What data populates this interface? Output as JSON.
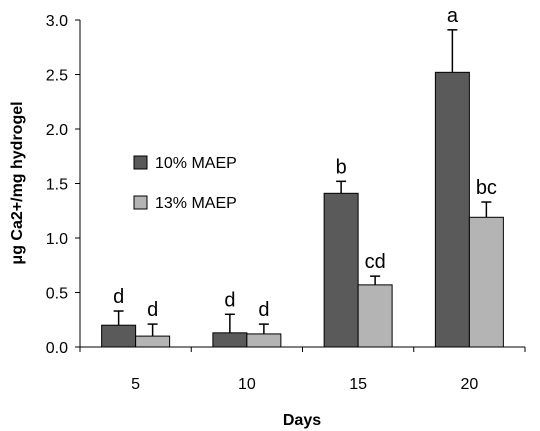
{
  "chart_data": {
    "type": "bar",
    "xlabel": "Days",
    "ylabel": "μg Ca2+/mg hydrogel",
    "categories": [
      "5",
      "10",
      "15",
      "20"
    ],
    "ylim": [
      0,
      3.0
    ],
    "yticks": [
      "0.0",
      "0.5",
      "1.0",
      "1.5",
      "2.0",
      "2.5",
      "3.0"
    ],
    "grid": false,
    "legend_position": "left-center",
    "series": [
      {
        "name": "10% MAEP",
        "color": "#5a5a5a",
        "values": [
          0.2,
          0.13,
          1.41,
          2.52
        ],
        "errors": [
          0.13,
          0.17,
          0.11,
          0.39
        ],
        "labels": [
          "d",
          "d",
          "b",
          "a"
        ]
      },
      {
        "name": "13% MAEP",
        "color": "#b4b4b4",
        "values": [
          0.1,
          0.12,
          0.57,
          1.19
        ],
        "errors": [
          0.11,
          0.09,
          0.08,
          0.14
        ],
        "labels": [
          "d",
          "d",
          "cd",
          "bc"
        ]
      }
    ]
  }
}
